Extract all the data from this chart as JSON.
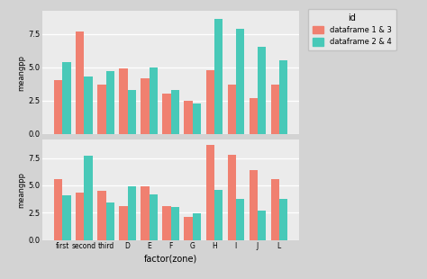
{
  "zones": [
    "first",
    "second",
    "third",
    "D",
    "E",
    "F",
    "G",
    "H",
    "I",
    "J",
    "L"
  ],
  "top_salmon": [
    4.0,
    7.7,
    3.7,
    4.9,
    4.2,
    3.0,
    2.5,
    4.8,
    3.7,
    2.7,
    3.7
  ],
  "top_teal": [
    5.4,
    4.3,
    4.7,
    3.3,
    5.0,
    3.3,
    2.3,
    8.6,
    7.9,
    6.5,
    5.5
  ],
  "bot_salmon": [
    5.6,
    4.3,
    4.5,
    3.1,
    4.9,
    3.1,
    2.1,
    8.7,
    7.8,
    6.4,
    5.6
  ],
  "bot_teal": [
    4.1,
    7.7,
    3.4,
    4.9,
    4.2,
    3.0,
    2.4,
    4.6,
    3.8,
    2.7,
    3.8
  ],
  "color_salmon": "#F08070",
  "color_teal": "#48C9B8",
  "bg_color": "#EBEBEB",
  "fig_bg_color": "#D3D3D3",
  "grid_color": "#FFFFFF",
  "ylabel": "meangpp",
  "xlabel": "factor(zone)",
  "legend_title": "id",
  "legend_labels": [
    "dataframe 1 & 3",
    "dataframe 2 & 4"
  ],
  "ylim": [
    0.0,
    9.2
  ],
  "yticks": [
    0.0,
    2.5,
    5.0,
    7.5
  ],
  "bar_width": 0.38
}
